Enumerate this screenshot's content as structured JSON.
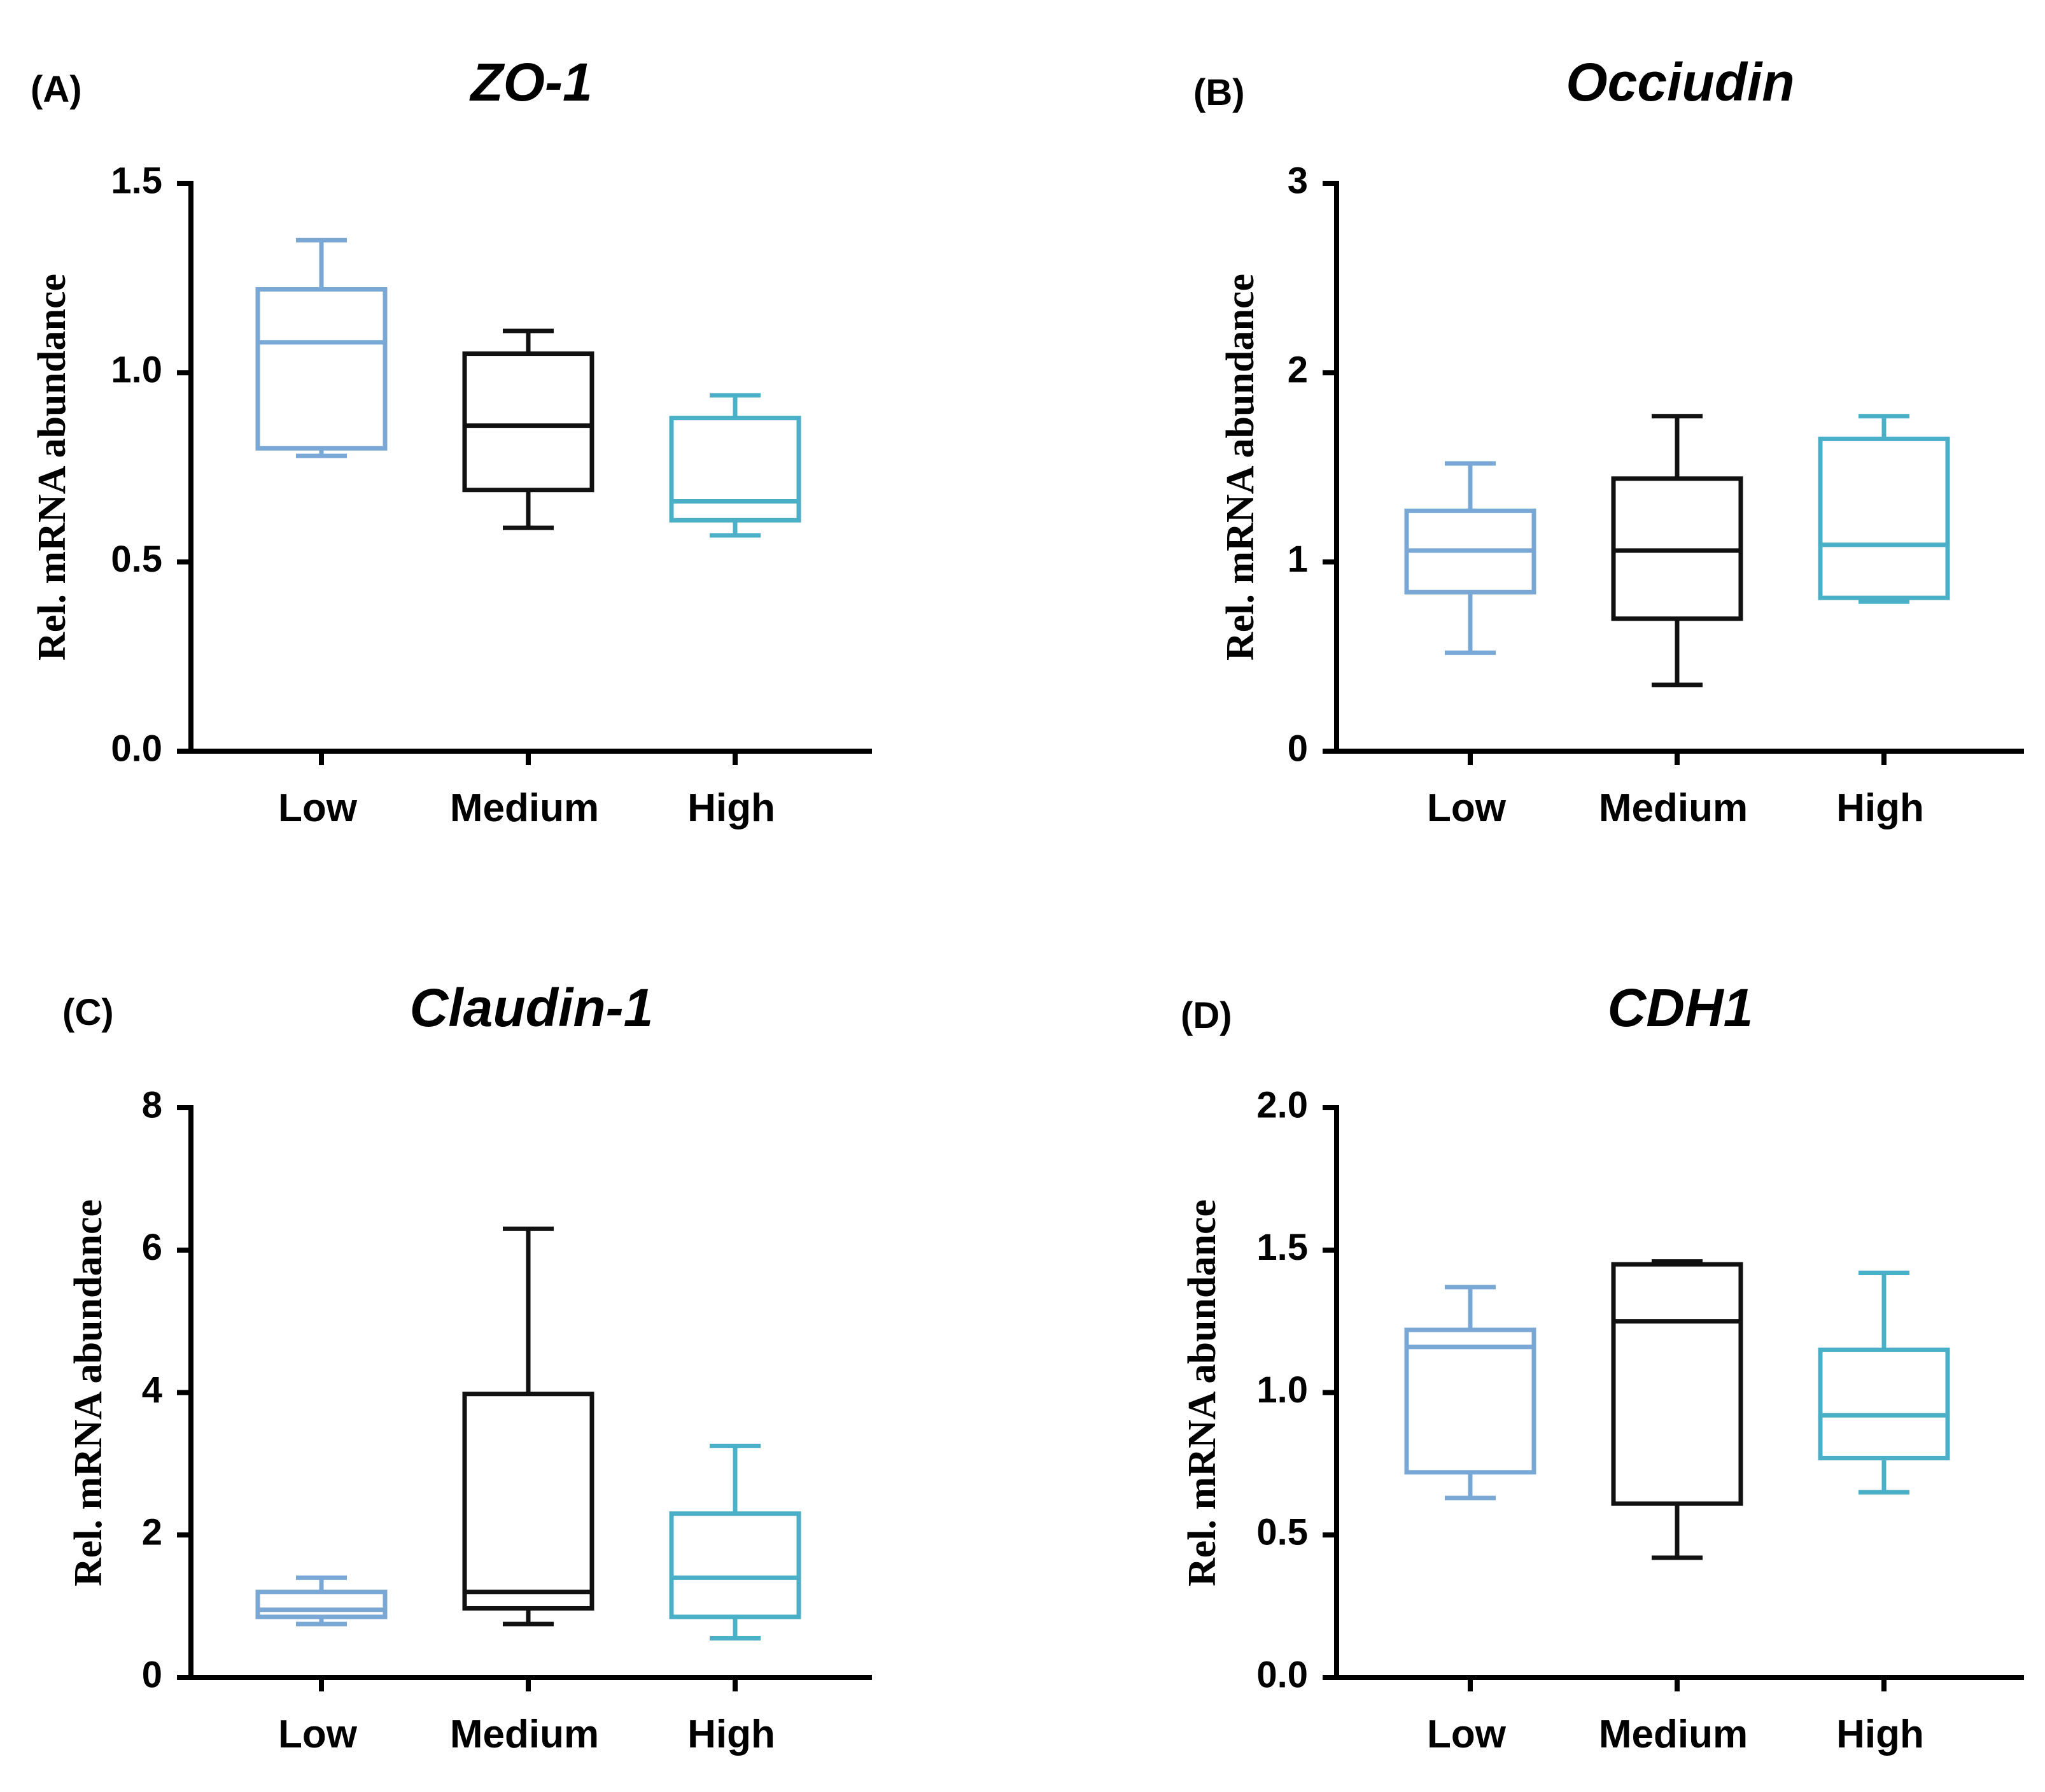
{
  "chart_data": [
    {
      "type": "box",
      "panel_label": "(A)",
      "title": "ZO-1",
      "ylabel": "Rel. mRNA abundance",
      "xlabel": "",
      "ylim": [
        0,
        1.5
      ],
      "yticks": [
        0,
        0.5,
        1.0,
        1.5
      ],
      "ytick_labels": [
        "0.0",
        "0.5",
        "1.0",
        "1.5"
      ],
      "categories": [
        "Low",
        "Medium",
        "High"
      ],
      "colors": [
        "#7aa8d6",
        "#111111",
        "#4ab0c8"
      ],
      "boxes": [
        {
          "min": 0.78,
          "q1": 0.8,
          "median": 1.08,
          "q3": 1.22,
          "max": 1.35
        },
        {
          "min": 0.59,
          "q1": 0.69,
          "median": 0.86,
          "q3": 1.05,
          "max": 1.11
        },
        {
          "min": 0.57,
          "q1": 0.61,
          "median": 0.66,
          "q3": 0.88,
          "max": 0.94
        }
      ]
    },
    {
      "type": "box",
      "panel_label": "(B)",
      "title": "Occiudin",
      "ylabel": "Rel. mRNA abundance",
      "xlabel": "",
      "ylim": [
        0,
        3
      ],
      "yticks": [
        0,
        1,
        2,
        3
      ],
      "ytick_labels": [
        "0",
        "1",
        "2",
        "3"
      ],
      "categories": [
        "Low",
        "Medium",
        "High"
      ],
      "colors": [
        "#7aa8d6",
        "#111111",
        "#4ab0c8"
      ],
      "boxes": [
        {
          "min": 0.52,
          "q1": 0.84,
          "median": 1.06,
          "q3": 1.27,
          "max": 1.52
        },
        {
          "min": 0.35,
          "q1": 0.7,
          "median": 1.06,
          "q3": 1.44,
          "max": 1.77
        },
        {
          "min": 0.79,
          "q1": 0.81,
          "median": 1.09,
          "q3": 1.65,
          "max": 1.77
        }
      ]
    },
    {
      "type": "box",
      "panel_label": "(C)",
      "title": "Claudin-1",
      "ylabel": "Rel. mRNA abundance",
      "xlabel": "",
      "ylim": [
        0,
        8
      ],
      "yticks": [
        0,
        2,
        4,
        6,
        8
      ],
      "ytick_labels": [
        "0",
        "2",
        "4",
        "6",
        "8"
      ],
      "categories": [
        "Low",
        "Medium",
        "High"
      ],
      "colors": [
        "#7aa8d6",
        "#111111",
        "#4ab0c8"
      ],
      "boxes": [
        {
          "min": 0.75,
          "q1": 0.85,
          "median": 0.95,
          "q3": 1.2,
          "max": 1.4
        },
        {
          "min": 0.75,
          "q1": 0.97,
          "median": 1.2,
          "q3": 3.98,
          "max": 6.3
        },
        {
          "min": 0.55,
          "q1": 0.85,
          "median": 1.4,
          "q3": 2.3,
          "max": 3.25
        }
      ]
    },
    {
      "type": "box",
      "panel_label": "(D)",
      "title": "CDH1",
      "ylabel": "Rel. mRNA abundance",
      "xlabel": "",
      "ylim": [
        0,
        2.0
      ],
      "yticks": [
        0,
        0.5,
        1.0,
        1.5,
        2.0
      ],
      "ytick_labels": [
        "0.0",
        "0.5",
        "1.0",
        "1.5",
        "2.0"
      ],
      "categories": [
        "Low",
        "Medium",
        "High"
      ],
      "colors": [
        "#7aa8d6",
        "#111111",
        "#4ab0c8"
      ],
      "boxes": [
        {
          "min": 0.63,
          "q1": 0.72,
          "median": 1.16,
          "q3": 1.22,
          "max": 1.37
        },
        {
          "min": 0.42,
          "q1": 0.61,
          "median": 1.25,
          "q3": 1.45,
          "max": 1.46
        },
        {
          "min": 0.65,
          "q1": 0.77,
          "median": 0.92,
          "q3": 1.15,
          "max": 1.42
        }
      ]
    }
  ]
}
